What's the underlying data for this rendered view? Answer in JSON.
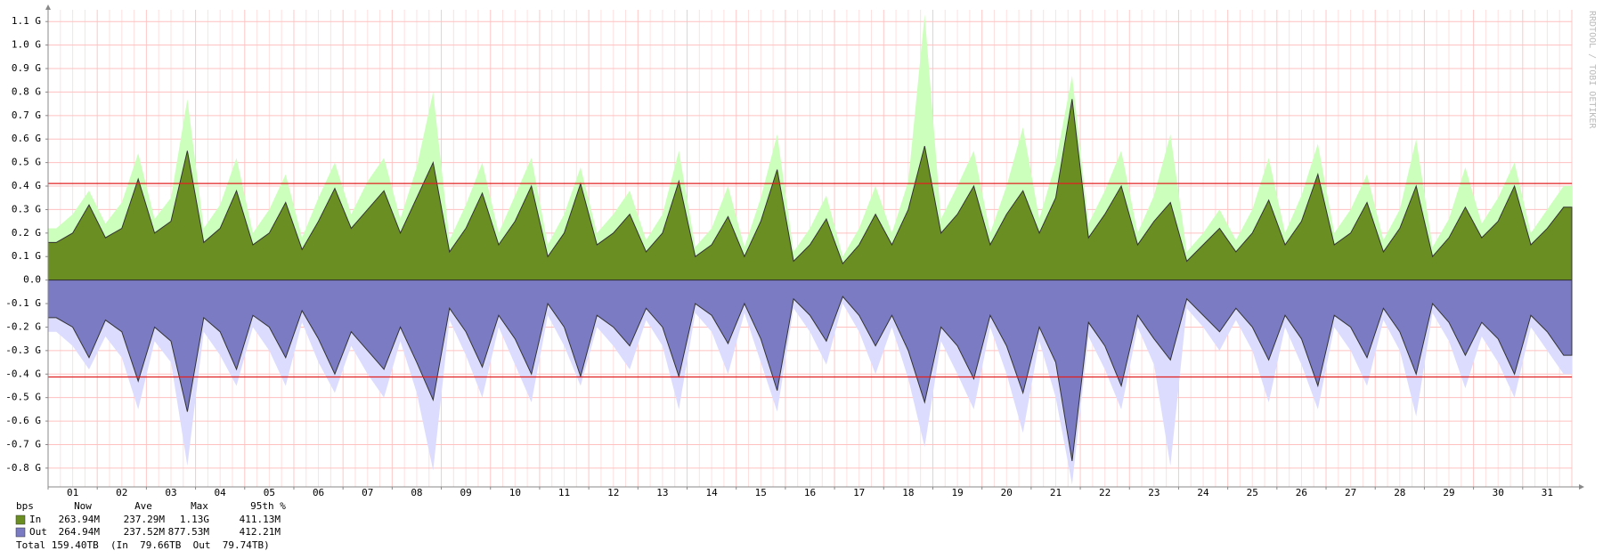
{
  "chart_data": {
    "type": "area",
    "watermark": "RRDTOOL / TOBI OETIKER",
    "categories": [
      "01",
      "02",
      "03",
      "04",
      "05",
      "06",
      "07",
      "08",
      "09",
      "10",
      "11",
      "12",
      "13",
      "14",
      "15",
      "16",
      "17",
      "18",
      "19",
      "20",
      "21",
      "22",
      "23",
      "24",
      "25",
      "26",
      "27",
      "28",
      "29",
      "30",
      "31"
    ],
    "ylim": [
      -0.88,
      1.15
    ],
    "yticks": [
      {
        "value": 1.1,
        "label": "1.1 G"
      },
      {
        "value": 1.0,
        "label": "1.0 G"
      },
      {
        "value": 0.9,
        "label": "0.9 G"
      },
      {
        "value": 0.8,
        "label": "0.8 G"
      },
      {
        "value": 0.7,
        "label": "0.7 G"
      },
      {
        "value": 0.6,
        "label": "0.6 G"
      },
      {
        "value": 0.5,
        "label": "0.5 G"
      },
      {
        "value": 0.4,
        "label": "0.4 G"
      },
      {
        "value": 0.3,
        "label": "0.3 G"
      },
      {
        "value": 0.2,
        "label": "0.2 G"
      },
      {
        "value": 0.1,
        "label": "0.1 G"
      },
      {
        "value": 0,
        "label": "0.0"
      },
      {
        "value": -0.1,
        "label": "-0.1 G"
      },
      {
        "value": -0.2,
        "label": "-0.2 G"
      },
      {
        "value": -0.3,
        "label": "-0.3 G"
      },
      {
        "value": -0.4,
        "label": "-0.4 G"
      },
      {
        "value": -0.5,
        "label": "-0.5 G"
      },
      {
        "value": -0.6,
        "label": "-0.6 G"
      },
      {
        "value": -0.7,
        "label": "-0.7 G"
      },
      {
        "value": -0.8,
        "label": "-0.8 G"
      }
    ],
    "grid": true,
    "percentile_lines": [
      0.41113,
      -0.41221
    ],
    "percentile_color": "#e02020",
    "legend_header": [
      "bps",
      "Now",
      "Ave",
      "Max",
      "95th %"
    ],
    "series": [
      {
        "name": "In",
        "color": "#6b8e23",
        "max_color": "#ccffbb",
        "legend_values": [
          "263.94M",
          "237.29M",
          "1.13G",
          "411.13M"
        ],
        "values": [
          [
            0.16,
            0.2,
            0.32
          ],
          [
            0.18,
            0.22,
            0.43
          ],
          [
            0.2,
            0.25,
            0.55
          ],
          [
            0.16,
            0.22,
            0.38
          ],
          [
            0.15,
            0.2,
            0.33
          ],
          [
            0.13,
            0.25,
            0.39
          ],
          [
            0.22,
            0.3,
            0.38
          ],
          [
            0.2,
            0.35,
            0.5
          ],
          [
            0.12,
            0.22,
            0.37
          ],
          [
            0.15,
            0.25,
            0.4
          ],
          [
            0.1,
            0.2,
            0.41
          ],
          [
            0.15,
            0.2,
            0.28
          ],
          [
            0.12,
            0.2,
            0.42
          ],
          [
            0.1,
            0.15,
            0.27
          ],
          [
            0.1,
            0.25,
            0.47
          ],
          [
            0.08,
            0.15,
            0.26
          ],
          [
            0.07,
            0.15,
            0.28
          ],
          [
            0.15,
            0.3,
            0.57
          ],
          [
            0.2,
            0.28,
            0.4
          ],
          [
            0.15,
            0.28,
            0.38
          ],
          [
            0.2,
            0.35,
            0.77
          ],
          [
            0.18,
            0.28,
            0.4
          ],
          [
            0.15,
            0.25,
            0.33
          ],
          [
            0.08,
            0.15,
            0.22
          ],
          [
            0.12,
            0.2,
            0.34
          ],
          [
            0.15,
            0.25,
            0.45
          ],
          [
            0.15,
            0.2,
            0.33
          ],
          [
            0.12,
            0.22,
            0.4
          ],
          [
            0.1,
            0.18,
            0.31
          ],
          [
            0.18,
            0.25,
            0.4
          ],
          [
            0.15,
            0.22,
            0.31
          ]
        ],
        "max_values": [
          [
            0.22,
            0.28,
            0.38
          ],
          [
            0.24,
            0.33,
            0.54
          ],
          [
            0.26,
            0.35,
            0.77
          ],
          [
            0.22,
            0.32,
            0.52
          ],
          [
            0.2,
            0.3,
            0.45
          ],
          [
            0.18,
            0.35,
            0.5
          ],
          [
            0.28,
            0.42,
            0.52
          ],
          [
            0.26,
            0.48,
            0.8
          ],
          [
            0.17,
            0.32,
            0.5
          ],
          [
            0.2,
            0.36,
            0.52
          ],
          [
            0.15,
            0.28,
            0.48
          ],
          [
            0.2,
            0.28,
            0.38
          ],
          [
            0.17,
            0.28,
            0.55
          ],
          [
            0.14,
            0.22,
            0.4
          ],
          [
            0.14,
            0.35,
            0.62
          ],
          [
            0.12,
            0.22,
            0.36
          ],
          [
            0.1,
            0.22,
            0.4
          ],
          [
            0.2,
            0.42,
            1.13
          ],
          [
            0.26,
            0.4,
            0.55
          ],
          [
            0.2,
            0.4,
            0.65
          ],
          [
            0.26,
            0.5,
            0.87
          ],
          [
            0.24,
            0.38,
            0.55
          ],
          [
            0.2,
            0.36,
            0.62
          ],
          [
            0.12,
            0.2,
            0.3
          ],
          [
            0.17,
            0.3,
            0.52
          ],
          [
            0.2,
            0.36,
            0.58
          ],
          [
            0.2,
            0.3,
            0.45
          ],
          [
            0.17,
            0.3,
            0.6
          ],
          [
            0.14,
            0.26,
            0.48
          ],
          [
            0.24,
            0.35,
            0.5
          ],
          [
            0.2,
            0.3,
            0.4
          ]
        ]
      },
      {
        "name": "Out",
        "color": "#7b7bc4",
        "max_color": "#dcdcff",
        "legend_values": [
          "264.94M",
          "237.52M",
          "877.53M",
          "412.21M"
        ],
        "values": [
          [
            -0.16,
            -0.2,
            -0.33
          ],
          [
            -0.17,
            -0.22,
            -0.43
          ],
          [
            -0.2,
            -0.26,
            -0.56
          ],
          [
            -0.16,
            -0.22,
            -0.38
          ],
          [
            -0.15,
            -0.2,
            -0.33
          ],
          [
            -0.13,
            -0.25,
            -0.4
          ],
          [
            -0.22,
            -0.3,
            -0.38
          ],
          [
            -0.2,
            -0.35,
            -0.51
          ],
          [
            -0.12,
            -0.22,
            -0.37
          ],
          [
            -0.15,
            -0.25,
            -0.4
          ],
          [
            -0.1,
            -0.2,
            -0.41
          ],
          [
            -0.15,
            -0.2,
            -0.28
          ],
          [
            -0.12,
            -0.2,
            -0.41
          ],
          [
            -0.1,
            -0.15,
            -0.27
          ],
          [
            -0.1,
            -0.25,
            -0.47
          ],
          [
            -0.08,
            -0.15,
            -0.26
          ],
          [
            -0.07,
            -0.15,
            -0.28
          ],
          [
            -0.15,
            -0.3,
            -0.52
          ],
          [
            -0.2,
            -0.28,
            -0.42
          ],
          [
            -0.15,
            -0.28,
            -0.48
          ],
          [
            -0.2,
            -0.35,
            -0.77
          ],
          [
            -0.18,
            -0.28,
            -0.45
          ],
          [
            -0.15,
            -0.25,
            -0.34
          ],
          [
            -0.08,
            -0.15,
            -0.22
          ],
          [
            -0.12,
            -0.2,
            -0.34
          ],
          [
            -0.15,
            -0.25,
            -0.45
          ],
          [
            -0.15,
            -0.2,
            -0.33
          ],
          [
            -0.12,
            -0.22,
            -0.4
          ],
          [
            -0.1,
            -0.18,
            -0.32
          ],
          [
            -0.18,
            -0.25,
            -0.4
          ],
          [
            -0.15,
            -0.22,
            -0.32
          ]
        ],
        "max_values": [
          [
            -0.22,
            -0.28,
            -0.38
          ],
          [
            -0.24,
            -0.33,
            -0.55
          ],
          [
            -0.26,
            -0.35,
            -0.79
          ],
          [
            -0.22,
            -0.32,
            -0.45
          ],
          [
            -0.2,
            -0.3,
            -0.45
          ],
          [
            -0.18,
            -0.35,
            -0.48
          ],
          [
            -0.28,
            -0.4,
            -0.5
          ],
          [
            -0.26,
            -0.48,
            -0.81
          ],
          [
            -0.17,
            -0.32,
            -0.5
          ],
          [
            -0.2,
            -0.36,
            -0.52
          ],
          [
            -0.15,
            -0.28,
            -0.45
          ],
          [
            -0.2,
            -0.28,
            -0.38
          ],
          [
            -0.17,
            -0.28,
            -0.55
          ],
          [
            -0.14,
            -0.22,
            -0.4
          ],
          [
            -0.14,
            -0.35,
            -0.56
          ],
          [
            -0.12,
            -0.22,
            -0.36
          ],
          [
            -0.1,
            -0.22,
            -0.4
          ],
          [
            -0.2,
            -0.42,
            -0.71
          ],
          [
            -0.26,
            -0.4,
            -0.55
          ],
          [
            -0.2,
            -0.4,
            -0.65
          ],
          [
            -0.26,
            -0.5,
            -0.87
          ],
          [
            -0.24,
            -0.38,
            -0.55
          ],
          [
            -0.2,
            -0.36,
            -0.79
          ],
          [
            -0.12,
            -0.2,
            -0.3
          ],
          [
            -0.17,
            -0.3,
            -0.52
          ],
          [
            -0.2,
            -0.36,
            -0.55
          ],
          [
            -0.2,
            -0.3,
            -0.45
          ],
          [
            -0.17,
            -0.3,
            -0.58
          ],
          [
            -0.14,
            -0.26,
            -0.46
          ],
          [
            -0.24,
            -0.35,
            -0.5
          ],
          [
            -0.2,
            -0.3,
            -0.4
          ]
        ]
      }
    ],
    "total_label": "Total 159.40TB  (In  79.66TB  Out  79.74TB)"
  }
}
